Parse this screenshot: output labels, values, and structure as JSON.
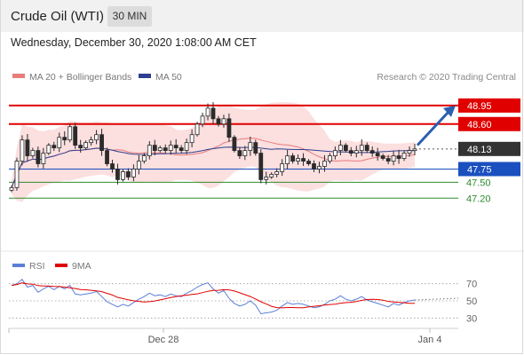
{
  "header": {
    "title": "Crude Oil (WTI)",
    "timeframe": "30 MIN",
    "datetime": "Wednesday, December 30, 2020 1:08:00 AM CET"
  },
  "legend": {
    "ma20": "MA 20 + Bollinger Bands",
    "ma50": "MA 50",
    "credit": "Research © 2020 Trading Central",
    "rsi": "RSI",
    "ma9": "9MA"
  },
  "colors": {
    "resistance": "#e00000",
    "support": "#1a4fbf",
    "target": "#2e8b2e",
    "current": "#333333",
    "ma20": "#e87b7b",
    "ma50": "#2d3f8f",
    "band": "#fcd9d9",
    "candle": "#2b2b2b",
    "rsi": "#5b7fd6",
    "rsi_ma": "#e00000",
    "arrow": "#2c5fb0"
  },
  "chart_data": [
    {
      "type": "candlestick",
      "ylim": [
        46.25,
        49.3
      ],
      "x_ticks": [
        "Dec 28",
        "Jan 4"
      ],
      "levels": [
        {
          "value": 48.95,
          "label": "48.95",
          "kind": "resistance"
        },
        {
          "value": 48.6,
          "label": "48.60",
          "kind": "resistance"
        },
        {
          "value": 48.13,
          "label": "48.13",
          "kind": "current"
        },
        {
          "value": 47.75,
          "label": "47.75",
          "kind": "support"
        },
        {
          "value": 47.5,
          "label": "47.50",
          "kind": "target"
        },
        {
          "value": 47.2,
          "label": "47.20",
          "kind": "target"
        }
      ],
      "arrow": {
        "from": 48.2,
        "to": 48.95
      },
      "series": [
        {
          "values": [
            47.4,
            47.9,
            48.3,
            48.0,
            48.1,
            47.85,
            48.05,
            48.2,
            48.15,
            48.35,
            48.3,
            48.55,
            48.2,
            48.15,
            48.25,
            48.3,
            48.4,
            48.1,
            47.85,
            47.75,
            47.55,
            47.7,
            47.6,
            47.75,
            47.9,
            48.0,
            48.2,
            48.1,
            48.15,
            48.1,
            48.2,
            48.15,
            48.1,
            48.25,
            48.4,
            48.6,
            48.75,
            48.9,
            48.7,
            48.6,
            48.7,
            48.35,
            48.1,
            48.0,
            48.1,
            48.25,
            48.05,
            47.55,
            47.6,
            47.65,
            47.7,
            47.85,
            48.0,
            47.9,
            47.95,
            47.9,
            47.85,
            47.75,
            47.8,
            47.9,
            48.0,
            48.1,
            48.2,
            48.1,
            48.05,
            48.1,
            48.2,
            48.1,
            48.05,
            48.0,
            47.95,
            47.9,
            48.0,
            47.95,
            48.05,
            48.1,
            48.13
          ]
        }
      ]
    },
    {
      "type": "line",
      "ylim": [
        20,
        80
      ],
      "y_ticks": [
        70,
        50,
        30
      ],
      "series": [
        {
          "values": [
            68,
            70,
            75,
            66,
            68,
            60,
            64,
            67,
            63,
            67,
            64,
            68,
            58,
            57,
            58,
            59,
            61,
            55,
            49,
            46,
            43,
            46,
            44,
            48,
            52,
            55,
            59,
            56,
            57,
            55,
            58,
            56,
            55,
            59,
            62,
            66,
            69,
            71,
            64,
            59,
            62,
            53,
            47,
            44,
            46,
            50,
            45,
            35,
            36,
            37,
            39,
            44,
            48,
            46,
            47,
            46,
            44,
            42,
            43,
            46,
            50,
            52,
            56,
            52,
            50,
            52,
            55,
            51,
            49,
            47,
            45,
            43,
            47,
            45,
            48,
            50,
            51
          ]
        }
      ]
    }
  ]
}
